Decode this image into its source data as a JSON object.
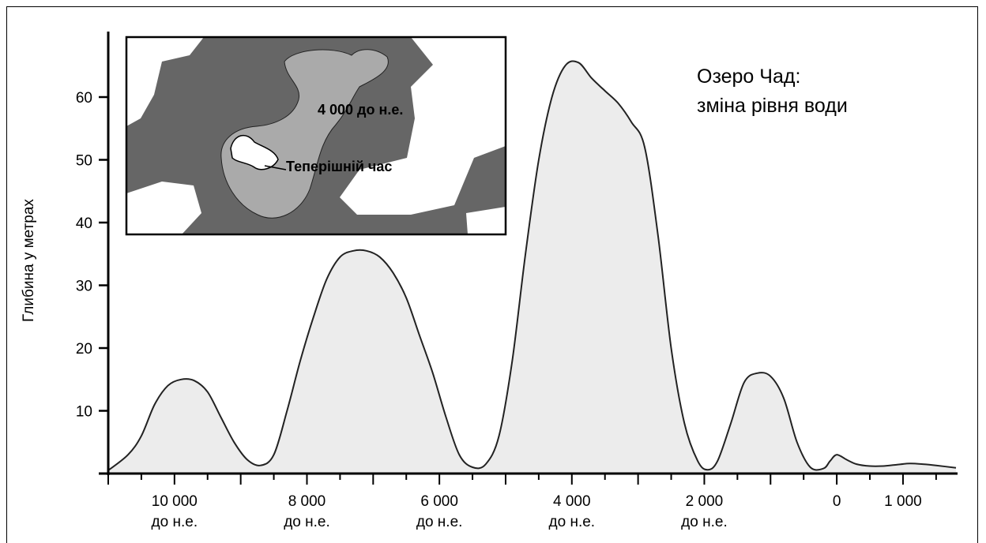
{
  "chart_data": {
    "type": "area",
    "title_lines": [
      "Озеро Чад:",
      "зміна рівня води"
    ],
    "ylabel": "Глибина у метрах",
    "xlabel": "",
    "ylim": [
      0,
      70
    ],
    "yticks": [
      10,
      20,
      30,
      40,
      50,
      60
    ],
    "xlim": [
      -11000,
      1800
    ],
    "xticks": [
      {
        "value": -10000,
        "line1": "10 000",
        "line2": "до н.е."
      },
      {
        "value": -8000,
        "line1": "8 000",
        "line2": "до н.е."
      },
      {
        "value": -6000,
        "line1": "6 000",
        "line2": "до н.е."
      },
      {
        "value": -4000,
        "line1": "4 000",
        "line2": "до н.е."
      },
      {
        "value": -2000,
        "line1": "2 000",
        "line2": "до н.е."
      },
      {
        "value": 0,
        "line1": "0",
        "line2": ""
      },
      {
        "value": 1000,
        "line1": "1 000",
        "line2": ""
      }
    ],
    "series": [
      {
        "points": [
          [
            -11000,
            0.5
          ],
          [
            -10700,
            3
          ],
          [
            -10500,
            6
          ],
          [
            -10300,
            11
          ],
          [
            -10100,
            14
          ],
          [
            -9900,
            15
          ],
          [
            -9700,
            14.8
          ],
          [
            -9500,
            13
          ],
          [
            -9300,
            9
          ],
          [
            -9100,
            5
          ],
          [
            -8900,
            2.2
          ],
          [
            -8700,
            1.3
          ],
          [
            -8500,
            3
          ],
          [
            -8300,
            10
          ],
          [
            -8100,
            18
          ],
          [
            -7900,
            25
          ],
          [
            -7700,
            31
          ],
          [
            -7500,
            34.5
          ],
          [
            -7300,
            35.5
          ],
          [
            -7100,
            35.5
          ],
          [
            -6900,
            34.5
          ],
          [
            -6700,
            32
          ],
          [
            -6500,
            28
          ],
          [
            -6300,
            22
          ],
          [
            -6100,
            16
          ],
          [
            -5900,
            9
          ],
          [
            -5700,
            3
          ],
          [
            -5500,
            1
          ],
          [
            -5300,
            1.5
          ],
          [
            -5100,
            6
          ],
          [
            -4900,
            18
          ],
          [
            -4700,
            35
          ],
          [
            -4500,
            50
          ],
          [
            -4300,
            60
          ],
          [
            -4100,
            65
          ],
          [
            -3900,
            65.5
          ],
          [
            -3700,
            63
          ],
          [
            -3500,
            61
          ],
          [
            -3300,
            59
          ],
          [
            -3100,
            56
          ],
          [
            -2900,
            52
          ],
          [
            -2700,
            38
          ],
          [
            -2500,
            20
          ],
          [
            -2300,
            8
          ],
          [
            -2100,
            2
          ],
          [
            -1950,
            0.6
          ],
          [
            -1800,
            2
          ],
          [
            -1600,
            8
          ],
          [
            -1400,
            14.5
          ],
          [
            -1200,
            16
          ],
          [
            -1000,
            15.5
          ],
          [
            -800,
            12
          ],
          [
            -600,
            5
          ],
          [
            -400,
            1
          ],
          [
            -200,
            0.8
          ],
          [
            -100,
            2
          ],
          [
            0,
            3
          ],
          [
            150,
            2.2
          ],
          [
            300,
            1.5
          ],
          [
            500,
            1.2
          ],
          [
            700,
            1.2
          ],
          [
            900,
            1.4
          ],
          [
            1100,
            1.6
          ],
          [
            1300,
            1.5
          ],
          [
            1500,
            1.3
          ],
          [
            1800,
            0.9
          ]
        ]
      }
    ]
  },
  "inset": {
    "label_4000": "4 000 до н.е.",
    "label_present": "Теперішній час"
  },
  "colors": {
    "area_fill": "#ececec",
    "curve_stroke": "#222222",
    "inset_land": "#666666",
    "inset_lake_ancient": "#aaaaaa",
    "inset_lake_present": "#ffffff"
  }
}
